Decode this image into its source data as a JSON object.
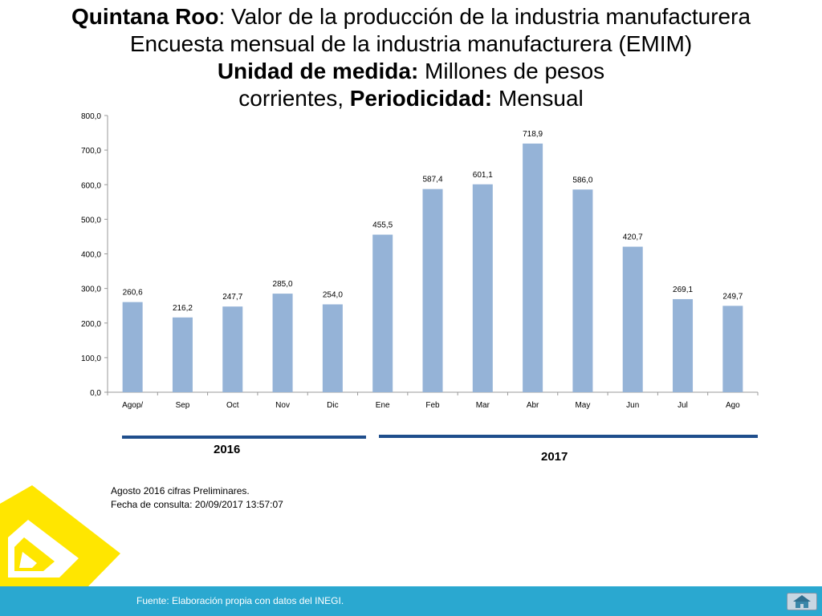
{
  "title": {
    "l1_bold": "Quintana Roo",
    "l1_rest": ": Valor de la producción de la industria manufacturera",
    "l2": "Encuesta mensual de la industria manufacturera (EMIM)",
    "l3_bold": "Unidad de medida:",
    "l3_rest": " Millones de pesos",
    "l4_a": "corrientes, ",
    "l4_bold": "Periodicidad:",
    "l4_rest": " Mensual"
  },
  "chart_data": {
    "type": "bar",
    "categories": [
      "Agop/",
      "Sep",
      "Oct",
      "Nov",
      "Dic",
      "Ene",
      "Feb",
      "Mar",
      "Abr",
      "May",
      "Jun",
      "Jul",
      "Ago"
    ],
    "values": [
      260.6,
      216.2,
      247.7,
      285.0,
      254.0,
      455.5,
      587.4,
      601.1,
      718.9,
      586.0,
      420.7,
      269.1,
      249.7
    ],
    "value_labels": [
      "260,6",
      "216,2",
      "247,7",
      "285,0",
      "254,0",
      "455,5",
      "587,4",
      "601,1",
      "718,9",
      "586,0",
      "420,7",
      "269,1",
      "249,7"
    ],
    "y_ticks": [
      "0,0",
      "100,0",
      "200,0",
      "300,0",
      "400,0",
      "500,0",
      "600,0",
      "700,0",
      "800,0"
    ],
    "ylim": [
      0,
      800
    ],
    "grid": false,
    "bar_color": "#95b3d7"
  },
  "groups": [
    {
      "label": "2016"
    },
    {
      "label": "2017"
    }
  ],
  "notes": {
    "line1": "Agosto 2016 cifras Preliminares.",
    "line2": "Fecha de consulta: 20/09/2017 13:57:07"
  },
  "footer": {
    "text": "Fuente: Elaboración propia con datos del INEGI."
  },
  "icons": {
    "logo": "yellow-diamond-logo-icon",
    "home": "home-icon"
  }
}
